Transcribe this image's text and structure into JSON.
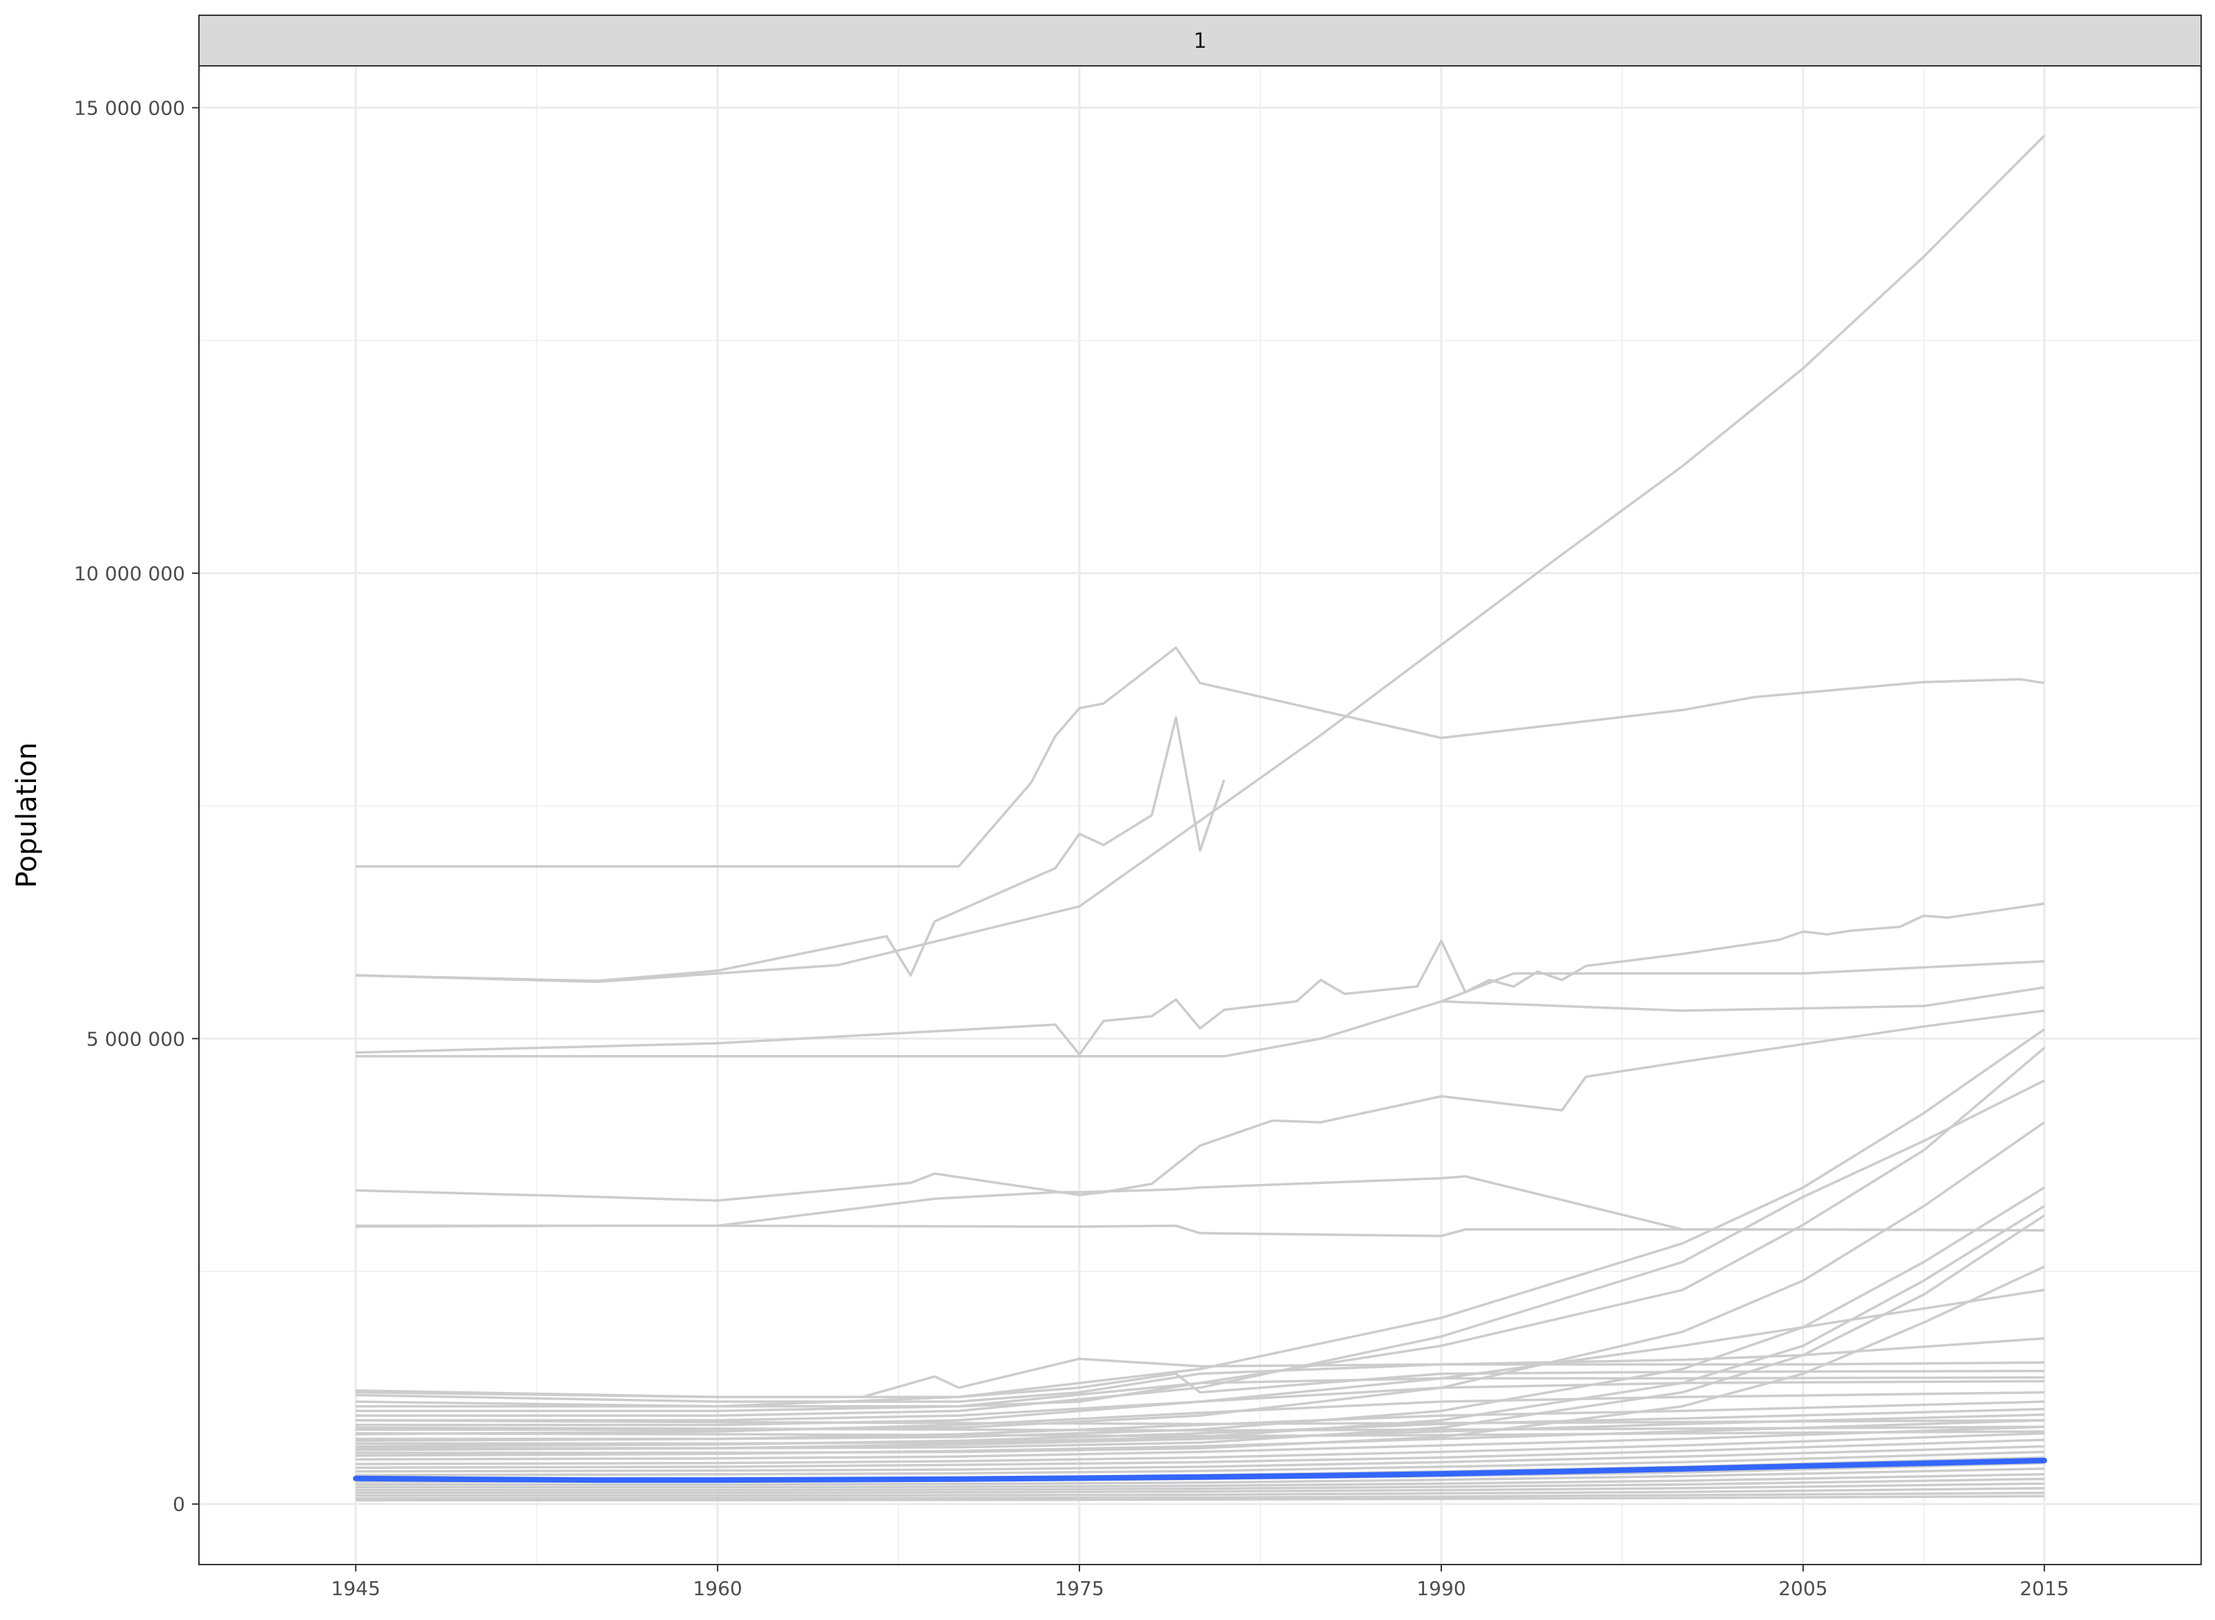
{
  "chart_data": {
    "type": "line",
    "facet_label": "1",
    "xlabel": "",
    "ylabel": "Population",
    "xlim": [
      1938.5,
      2021.5
    ],
    "ylim": [
      -650000,
      15450000
    ],
    "x_ticks": [
      1945,
      1960,
      1975,
      1990,
      2005,
      2015
    ],
    "x_tick_labels": [
      "1945",
      "1960",
      "1975",
      "1990",
      "2005",
      "2015"
    ],
    "x_minor_gridlines": [
      1952.5,
      1967.5,
      1982.5,
      1997.5,
      2010
    ],
    "y_ticks": [
      0,
      5000000,
      10000000,
      15000000
    ],
    "y_tick_labels": [
      "0",
      "5 000 000",
      "10 000 000",
      "15 000 000"
    ],
    "y_minor_gridlines": [
      2500000,
      7500000,
      12500000
    ],
    "grid": true,
    "colors": {
      "background_series": "#cccccc",
      "highlight_series": "#3366ff",
      "strip_fill": "#d9d9d9",
      "grid_major": "#ebebeb",
      "grid_minor": "#f2f2f2",
      "panel_border": "#333333"
    },
    "series": [
      {
        "x": [
          1945,
          1955,
          1965,
          1975,
          1985,
          1990,
          1995,
          2000,
          2005,
          2010,
          2015
        ],
        "y": [
          5680000,
          5610000,
          5790000,
          6420000,
          8260000,
          9230000,
          10200000,
          11150000,
          12200000,
          13400000,
          14700000
        ]
      },
      {
        "x": [
          1945,
          1960,
          1970,
          1973,
          1974,
          1975,
          1976,
          1979,
          1980,
          1990,
          2000,
          2003,
          2010,
          2014,
          2015
        ],
        "y": [
          6850000,
          6850000,
          6850000,
          7750000,
          8250000,
          8550000,
          8600000,
          9200000,
          8820000,
          8230000,
          8530000,
          8670000,
          8830000,
          8860000,
          8820000
        ]
      },
      {
        "x": [
          1945,
          1955,
          1960,
          1967,
          1968,
          1969,
          1974,
          1975,
          1976,
          1978,
          1979,
          1980,
          1981
        ],
        "y": [
          5680000,
          5620000,
          5730000,
          6100000,
          5680000,
          6260000,
          6830000,
          7200000,
          7080000,
          7400000,
          8450000,
          7020000,
          7780000
        ]
      },
      {
        "x": [
          1945,
          1960,
          1974,
          1975,
          1976,
          1978,
          1979,
          1980,
          1981,
          1984,
          1985,
          1986,
          1989,
          1990,
          1991,
          1992,
          1993,
          1994,
          1995,
          1996,
          2000,
          2004,
          2005,
          2006,
          2007,
          2009,
          2010,
          2011,
          2015
        ],
        "y": [
          4850000,
          4950000,
          5150000,
          4830000,
          5190000,
          5240000,
          5420000,
          5110000,
          5310000,
          5400000,
          5630000,
          5480000,
          5560000,
          6050000,
          5500000,
          5630000,
          5560000,
          5720000,
          5630000,
          5780000,
          5910000,
          6060000,
          6150000,
          6120000,
          6160000,
          6200000,
          6320000,
          6300000,
          6450000
        ]
      },
      {
        "x": [
          1945,
          1960,
          1975,
          1981,
          1985,
          1990,
          1993,
          2000,
          2005,
          2015
        ],
        "y": [
          4810000,
          4810000,
          4810000,
          4810000,
          5000000,
          5400000,
          5700000,
          5700000,
          5700000,
          5830000
        ]
      },
      {
        "x": [
          1990,
          2000,
          2010,
          2015
        ],
        "y": [
          5400000,
          5300000,
          5350000,
          5550000
        ]
      },
      {
        "x": [
          1945,
          1955,
          1960,
          1968,
          1969,
          1975,
          1976,
          1978,
          1980,
          1983,
          1985,
          1990,
          1995,
          1996,
          2000,
          2005,
          2010,
          2015
        ],
        "y": [
          3370000,
          3300000,
          3260000,
          3450000,
          3550000,
          3320000,
          3350000,
          3440000,
          3850000,
          4120000,
          4100000,
          4380000,
          4230000,
          4590000,
          4750000,
          4940000,
          5130000,
          5300000
        ]
      },
      {
        "x": [
          1945,
          1955,
          1960,
          1969,
          1974,
          1975,
          1979,
          1980,
          1985,
          1990,
          1991,
          2000,
          2005,
          2015
        ],
        "y": [
          2980000,
          2990000,
          2990000,
          3280000,
          3350000,
          3350000,
          3380000,
          3400000,
          3450000,
          3500000,
          3520000,
          2950000,
          2950000,
          2940000
        ]
      },
      {
        "x": [
          1945,
          1960,
          1974,
          1975,
          1979,
          1980,
          1990,
          1991,
          2000,
          2005,
          2015
        ],
        "y": [
          2990000,
          2990000,
          2980000,
          2980000,
          2990000,
          2910000,
          2880000,
          2950000,
          2950000,
          2950000,
          2940000
        ]
      },
      {
        "x": [
          1945,
          1960,
          1970,
          1980,
          1990,
          2000,
          2005,
          2010,
          2015
        ],
        "y": [
          1200000,
          1150000,
          1150000,
          1450000,
          2000000,
          2800000,
          3400000,
          4200000,
          5100000
        ]
      },
      {
        "x": [
          1945,
          1960,
          1970,
          1980,
          1990,
          2000,
          2005,
          2010,
          2015
        ],
        "y": [
          1100000,
          1050000,
          1050000,
          1300000,
          1700000,
          2300000,
          3000000,
          3800000,
          4900000
        ]
      },
      {
        "x": [
          1945,
          1960,
          1970,
          1980,
          1990,
          2000,
          2005,
          2010,
          2015
        ],
        "y": [
          950000,
          950000,
          1000000,
          1250000,
          1800000,
          2600000,
          3300000,
          3900000,
          4550000
        ]
      },
      {
        "x": [
          1945,
          1960,
          1970,
          1980,
          1990,
          2000,
          2005,
          2010,
          2015
        ],
        "y": [
          800000,
          800000,
          820000,
          950000,
          1250000,
          1850000,
          2400000,
          3200000,
          4100000
        ]
      },
      {
        "x": [
          1945,
          1960,
          1970,
          1980,
          1990,
          2000,
          2005,
          2010,
          2015
        ],
        "y": [
          700000,
          700000,
          720000,
          800000,
          1000000,
          1450000,
          1900000,
          2600000,
          3400000
        ]
      },
      {
        "x": [
          1945,
          1960,
          1970,
          1980,
          1990,
          2000,
          2005,
          2010,
          2015
        ],
        "y": [
          650000,
          650000,
          660000,
          720000,
          900000,
          1300000,
          1700000,
          2400000,
          3200000
        ]
      },
      {
        "x": [
          1945,
          1960,
          1970,
          1980,
          1990,
          2000,
          2005,
          2010,
          2015
        ],
        "y": [
          600000,
          600000,
          610000,
          660000,
          820000,
          1200000,
          1600000,
          2250000,
          3100000
        ]
      },
      {
        "x": [
          1945,
          1960,
          1970,
          1980,
          1990,
          2000,
          2005,
          2010,
          2015
        ],
        "y": [
          550000,
          550000,
          560000,
          600000,
          720000,
          1050000,
          1400000,
          1950000,
          2550000
        ]
      },
      {
        "x": [
          1945,
          1960,
          1970,
          1980,
          1990,
          2000,
          2005,
          2010,
          2015
        ],
        "y": [
          900000,
          900000,
          950000,
          1100000,
          1350000,
          1700000,
          1900000,
          2100000,
          2300000
        ]
      },
      {
        "x": [
          1945,
          1960,
          1966,
          1969,
          1970,
          1975,
          1980,
          1990,
          2000,
          2005,
          2015
        ],
        "y": [
          1220000,
          1150000,
          1150000,
          1370000,
          1250000,
          1560000,
          1480000,
          1500000,
          1550000,
          1600000,
          1780000
        ]
      },
      {
        "x": [
          1945,
          1960,
          1970,
          1975,
          1980,
          1990,
          2000,
          2005,
          2015
        ],
        "y": [
          1170000,
          1100000,
          1100000,
          1200000,
          1400000,
          1500000,
          1500000,
          1500000,
          1520000
        ]
      },
      {
        "x": [
          1945,
          1960,
          1970,
          1975,
          1979,
          1980,
          1990,
          2000,
          2015
        ],
        "y": [
          1050000,
          1050000,
          1150000,
          1250000,
          1400000,
          1200000,
          1400000,
          1420000,
          1430000
        ]
      },
      {
        "x": [
          1945,
          1960,
          1970,
          1975,
          1980,
          1990,
          2000,
          2015
        ],
        "y": [
          1000000,
          1000000,
          1050000,
          1100000,
          1300000,
          1350000,
          1350000,
          1360000
        ]
      },
      {
        "x": [
          1945,
          1960,
          1970,
          1980,
          1990,
          2000,
          2015
        ],
        "y": [
          850000,
          850000,
          900000,
          1100000,
          1250000,
          1300000,
          1320000
        ]
      },
      {
        "x": [
          1945,
          1960,
          1970,
          1980,
          1990,
          2000,
          2015
        ],
        "y": [
          750000,
          780000,
          850000,
          980000,
          1100000,
          1150000,
          1200000
        ]
      },
      {
        "x": [
          1945,
          1960,
          1970,
          1980,
          1990,
          2000,
          2015
        ],
        "y": [
          680000,
          700000,
          750000,
          850000,
          950000,
          1000000,
          1100000
        ]
      },
      {
        "x": [
          1945,
          1960,
          1970,
          1980,
          1990,
          2000,
          2015
        ],
        "y": [
          620000,
          640000,
          680000,
          760000,
          860000,
          920000,
          1020000
        ]
      },
      {
        "x": [
          1945,
          1960,
          1970,
          1980,
          1990,
          2000,
          2015
        ],
        "y": [
          580000,
          600000,
          640000,
          700000,
          780000,
          860000,
          960000
        ]
      },
      {
        "x": [
          1945,
          1960,
          1970,
          1980,
          1990,
          2000,
          2015
        ],
        "y": [
          520000,
          540000,
          570000,
          620000,
          700000,
          780000,
          900000
        ]
      },
      {
        "x": [
          1945,
          1960,
          1970,
          1980,
          1990,
          2000,
          2015
        ],
        "y": [
          480000,
          490000,
          510000,
          560000,
          630000,
          700000,
          830000
        ]
      },
      {
        "x": [
          1945,
          1960,
          1970,
          1980,
          1990,
          2000,
          2015
        ],
        "y": [
          430000,
          440000,
          460000,
          500000,
          560000,
          630000,
          760000
        ]
      },
      {
        "x": [
          1945,
          1960,
          1970,
          1980,
          1990,
          2000,
          2015
        ],
        "y": [
          390000,
          400000,
          420000,
          450000,
          500000,
          570000,
          690000
        ]
      },
      {
        "x": [
          1945,
          1960,
          1970,
          1980,
          1990,
          2000,
          2015
        ],
        "y": [
          350000,
          360000,
          370000,
          400000,
          450000,
          510000,
          620000
        ]
      },
      {
        "x": [
          1945,
          1960,
          1970,
          1980,
          1990,
          2000,
          2015
        ],
        "y": [
          310000,
          320000,
          330000,
          355000,
          400000,
          450000,
          560000
        ]
      },
      {
        "x": [
          1945,
          1960,
          1970,
          1980,
          1990,
          2000,
          2015
        ],
        "y": [
          270000,
          275000,
          285000,
          310000,
          350000,
          400000,
          500000
        ]
      },
      {
        "x": [
          1945,
          1960,
          1970,
          1980,
          1990,
          2000,
          2015
        ],
        "y": [
          240000,
          245000,
          250000,
          270000,
          300000,
          340000,
          440000
        ]
      },
      {
        "x": [
          1945,
          1960,
          1970,
          1980,
          1990,
          2000,
          2015
        ],
        "y": [
          210000,
          210000,
          215000,
          230000,
          260000,
          300000,
          380000
        ]
      },
      {
        "x": [
          1945,
          1960,
          1970,
          1980,
          1990,
          2000,
          2015
        ],
        "y": [
          180000,
          180000,
          185000,
          195000,
          220000,
          250000,
          320000
        ]
      },
      {
        "x": [
          1945,
          1960,
          1970,
          1980,
          1990,
          2000,
          2015
        ],
        "y": [
          150000,
          150000,
          155000,
          165000,
          185000,
          210000,
          270000
        ]
      },
      {
        "x": [
          1945,
          1960,
          1970,
          1980,
          1990,
          2000,
          2015
        ],
        "y": [
          120000,
          120000,
          125000,
          135000,
          150000,
          170000,
          220000
        ]
      },
      {
        "x": [
          1945,
          1960,
          1970,
          1980,
          1990,
          2000,
          2015
        ],
        "y": [
          90000,
          90000,
          95000,
          100000,
          115000,
          130000,
          170000
        ]
      },
      {
        "x": [
          1945,
          1960,
          1970,
          1980,
          1990,
          2000,
          2015
        ],
        "y": [
          60000,
          62000,
          65000,
          70000,
          80000,
          95000,
          120000
        ]
      },
      {
        "x": [
          1945,
          1960,
          1970,
          1980,
          1990,
          2000,
          2015
        ],
        "y": [
          40000,
          42000,
          44000,
          48000,
          55000,
          65000,
          85000
        ]
      },
      {
        "x": [
          1945,
          1960,
          1970,
          1980,
          1990,
          2000,
          2015
        ],
        "y": [
          900000,
          880000,
          870000,
          860000,
          870000,
          880000,
          900000
        ]
      },
      {
        "x": [
          1945,
          1960,
          1970,
          1980,
          1990,
          2000,
          2015
        ],
        "y": [
          820000,
          810000,
          800000,
          790000,
          800000,
          810000,
          830000
        ]
      },
      {
        "x": [
          1945,
          1960,
          1970,
          1980,
          1990,
          2000,
          2015
        ],
        "y": [
          760000,
          750000,
          740000,
          730000,
          740000,
          760000,
          780000
        ]
      }
    ],
    "highlight": {
      "x": [
        1945,
        1950,
        1955,
        1960,
        1965,
        1970,
        1975,
        1980,
        1985,
        1990,
        1995,
        2000,
        2005,
        2010,
        2015
      ],
      "y": [
        275000,
        265000,
        258000,
        258000,
        262000,
        268000,
        278000,
        290000,
        305000,
        325000,
        350000,
        378000,
        408000,
        438000,
        468000
      ]
    }
  }
}
